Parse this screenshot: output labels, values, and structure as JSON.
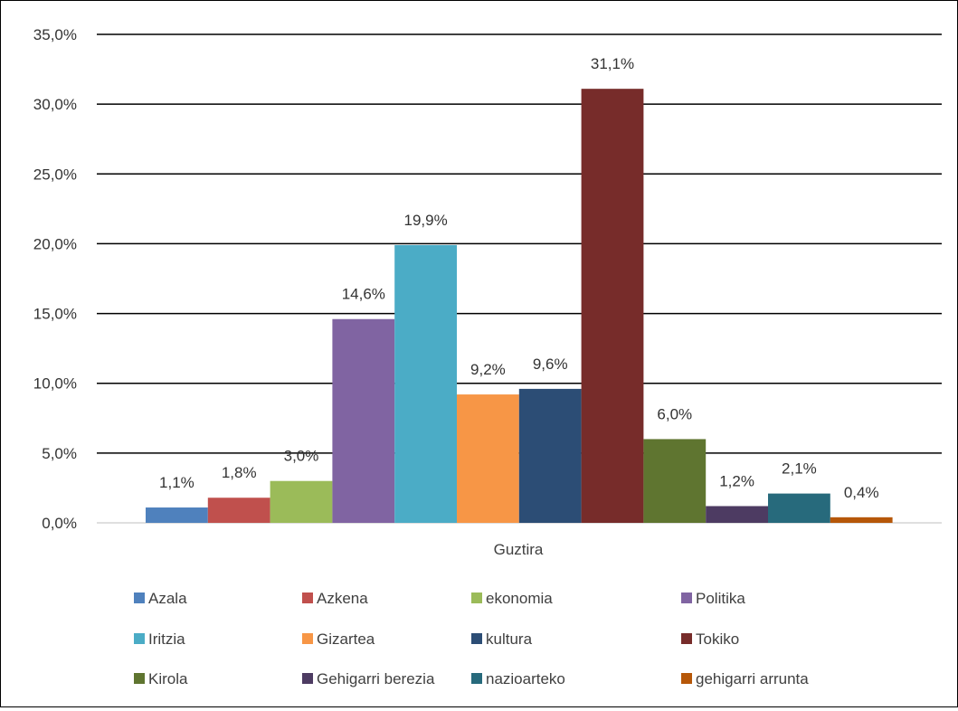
{
  "chart_data": {
    "type": "bar",
    "categories": [
      "Guztira"
    ],
    "series": [
      {
        "name": "Azala",
        "values": [
          1.1
        ],
        "label": "1,1%",
        "color": "#4F81BD"
      },
      {
        "name": "Azkena",
        "values": [
          1.8
        ],
        "label": "1,8%",
        "color": "#C0504D"
      },
      {
        "name": "ekonomia",
        "values": [
          3.0
        ],
        "label": "3,0%",
        "color": "#9BBB59"
      },
      {
        "name": "Politika",
        "values": [
          14.6
        ],
        "label": "14,6%",
        "color": "#8064A2"
      },
      {
        "name": "Iritzia",
        "values": [
          19.9
        ],
        "label": "19,9%",
        "color": "#4BACC6"
      },
      {
        "name": "Gizartea",
        "values": [
          9.2
        ],
        "label": "9,2%",
        "color": "#F79646"
      },
      {
        "name": "kultura",
        "values": [
          9.6
        ],
        "label": "9,6%",
        "color": "#2C4D75"
      },
      {
        "name": "Tokiko",
        "values": [
          31.1
        ],
        "label": "31,1%",
        "color": "#772C2A"
      },
      {
        "name": "Kirola",
        "values": [
          6.0
        ],
        "label": "6,0%",
        "color": "#5F7530"
      },
      {
        "name": "Gehigarri berezia",
        "values": [
          1.2
        ],
        "label": "1,2%",
        "color": "#4D3B62"
      },
      {
        "name": "nazioarteko",
        "values": [
          2.1
        ],
        "label": "2,1%",
        "color": "#276A7C"
      },
      {
        "name": "gehigarri arrunta",
        "values": [
          0.4
        ],
        "label": "0,4%",
        "color": "#B65708"
      }
    ],
    "yticks": [
      "0,0%",
      "5,0%",
      "10,0%",
      "15,0%",
      "20,0%",
      "25,0%",
      "30,0%",
      "35,0%"
    ],
    "ylim": [
      0,
      35
    ],
    "grid": true,
    "legend_position": "bottom"
  }
}
